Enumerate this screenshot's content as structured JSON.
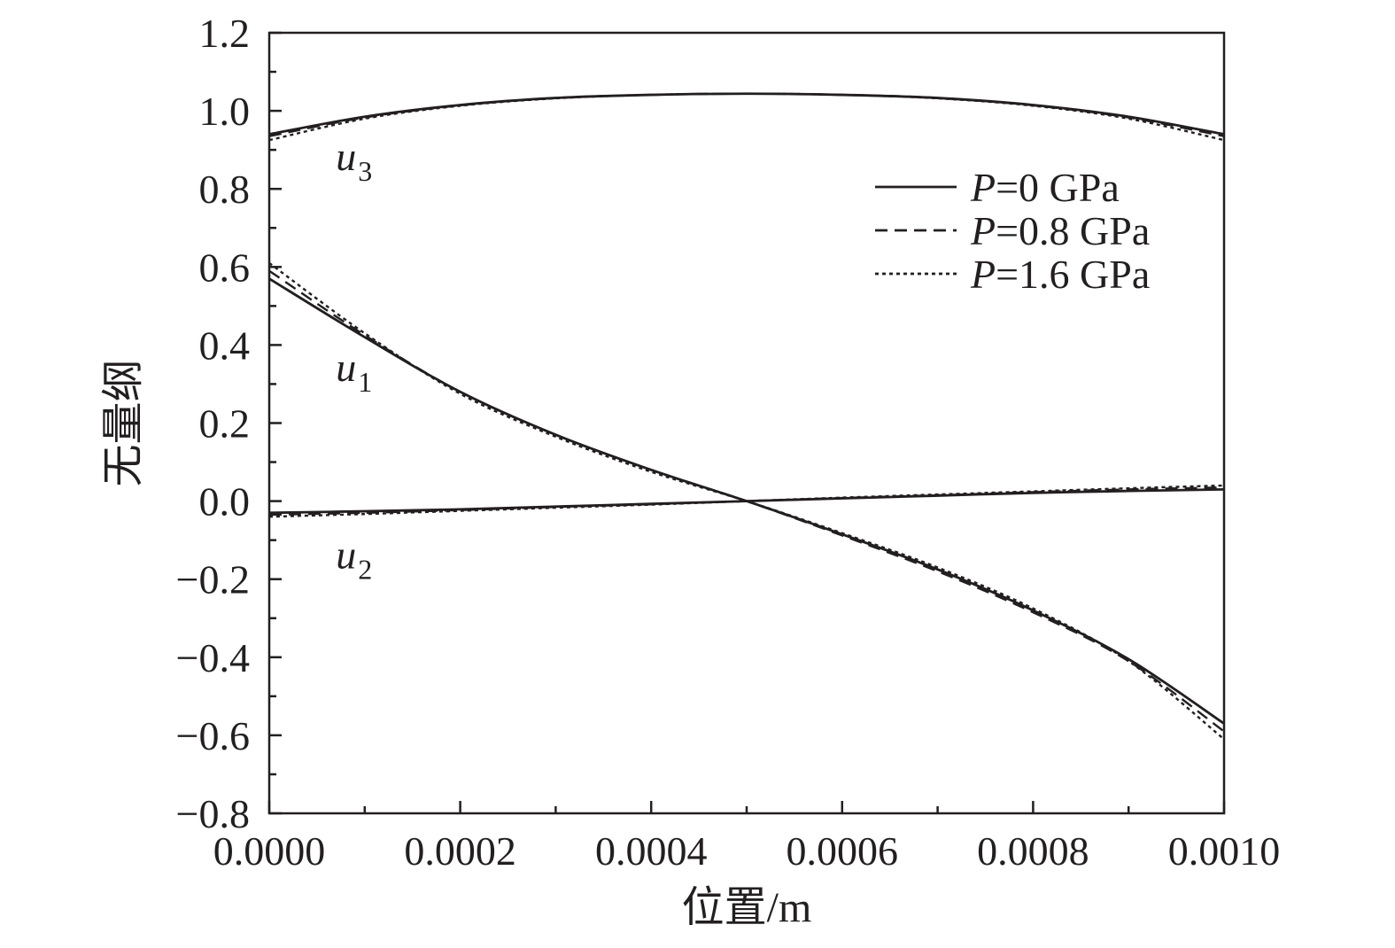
{
  "chart_data": {
    "type": "line",
    "xlabel": "位置/m",
    "ylabel": "无量纲",
    "xlim": [
      0.0,
      0.001
    ],
    "ylim": [
      -0.8,
      1.2
    ],
    "x_ticks": [
      0.0,
      0.0002,
      0.0004,
      0.0006,
      0.0008,
      0.001
    ],
    "x_tick_labels": [
      "0.0000",
      "0.0002",
      "0.0004",
      "0.0006",
      "0.0008",
      "0.0010"
    ],
    "y_ticks": [
      -0.8,
      -0.6,
      -0.4,
      -0.2,
      0.0,
      0.2,
      0.4,
      0.6,
      0.8,
      1.0,
      1.2
    ],
    "y_tick_labels": [
      "−0.8",
      "−0.6",
      "−0.4",
      "−0.2",
      "0.0",
      "0.2",
      "0.4",
      "0.6",
      "0.8",
      "1.0",
      "1.2"
    ],
    "grid": false,
    "legend_position": "top-right",
    "legend": [
      {
        "prefix": "P",
        "suffix": "=0 GPa",
        "style": "solid"
      },
      {
        "prefix": "P",
        "suffix": "=0.8 GPa",
        "style": "dashed"
      },
      {
        "prefix": "P",
        "suffix": "=1.6 GPa",
        "style": "dotted"
      }
    ],
    "curve_labels": [
      {
        "base": "u",
        "sub": "3",
        "x": 8e-05,
        "y": 0.88
      },
      {
        "base": "u",
        "sub": "1",
        "x": 8e-05,
        "y": 0.34
      },
      {
        "base": "u",
        "sub": "2",
        "x": 8e-05,
        "y": -0.14
      }
    ],
    "x": [
      0.0,
      0.0001,
      0.0002,
      0.0003,
      0.0004,
      0.0005,
      0.0006,
      0.0007,
      0.0008,
      0.0009,
      0.001
    ],
    "series": [
      {
        "group": "u3",
        "style": "solid",
        "values": [
          0.94,
          0.985,
          1.015,
          1.033,
          1.041,
          1.044,
          1.041,
          1.033,
          1.015,
          0.985,
          0.94
        ]
      },
      {
        "group": "u3",
        "style": "dashed",
        "values": [
          0.935,
          0.983,
          1.014,
          1.033,
          1.041,
          1.044,
          1.041,
          1.033,
          1.014,
          0.983,
          0.935
        ]
      },
      {
        "group": "u3",
        "style": "dotted",
        "values": [
          0.925,
          0.98,
          1.013,
          1.032,
          1.041,
          1.044,
          1.041,
          1.032,
          1.013,
          0.98,
          0.925
        ]
      },
      {
        "group": "u1",
        "style": "solid",
        "values": [
          0.57,
          0.42,
          0.28,
          0.17,
          0.08,
          0.0,
          -0.085,
          -0.175,
          -0.28,
          -0.405,
          -0.57
        ]
      },
      {
        "group": "u1",
        "style": "dashed",
        "values": [
          0.59,
          0.425,
          0.28,
          0.17,
          0.08,
          0.0,
          -0.088,
          -0.18,
          -0.285,
          -0.41,
          -0.59
        ]
      },
      {
        "group": "u1",
        "style": "dotted",
        "values": [
          0.61,
          0.43,
          0.275,
          0.165,
          0.075,
          0.0,
          -0.082,
          -0.17,
          -0.275,
          -0.41,
          -0.61
        ]
      },
      {
        "group": "u2",
        "style": "solid",
        "values": [
          -0.03,
          -0.026,
          -0.021,
          -0.014,
          -0.007,
          0.0,
          0.007,
          0.014,
          0.021,
          0.026,
          0.03
        ]
      },
      {
        "group": "u2",
        "style": "dashed",
        "values": [
          -0.035,
          -0.03,
          -0.023,
          -0.015,
          -0.008,
          0.0,
          0.008,
          0.015,
          0.023,
          0.03,
          0.035
        ]
      },
      {
        "group": "u2",
        "style": "dotted",
        "values": [
          -0.04,
          -0.033,
          -0.025,
          -0.017,
          -0.009,
          0.0,
          0.009,
          0.017,
          0.025,
          0.033,
          0.04
        ]
      }
    ]
  }
}
